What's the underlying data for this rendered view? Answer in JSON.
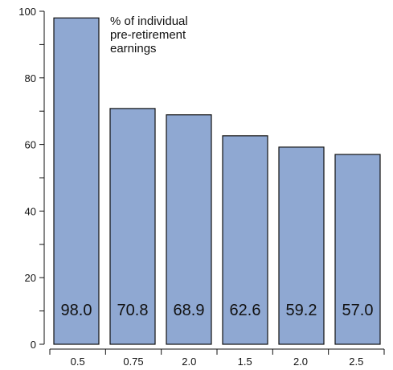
{
  "chart_data": {
    "type": "bar",
    "categories": [
      "0.5",
      "0.75",
      "2.0",
      "1.5",
      "2.0",
      "2.5"
    ],
    "values": [
      98.0,
      70.8,
      68.9,
      62.6,
      59.2,
      57.0
    ],
    "value_labels": [
      "98.0",
      "70.8",
      "68.9",
      "62.6",
      "59.2",
      "57.0"
    ],
    "annotation": [
      "% of individual",
      "pre-retirement",
      "earnings"
    ],
    "y_ticks": [
      0,
      20,
      40,
      60,
      80,
      100
    ],
    "ylim": [
      0,
      100
    ],
    "bar_color": "#8fa8d2",
    "grid": false,
    "legend": "none"
  }
}
